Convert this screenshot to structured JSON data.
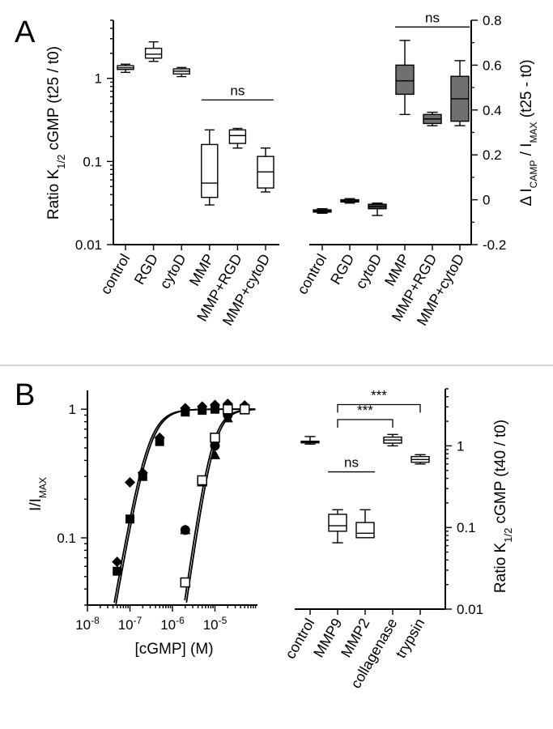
{
  "panel_labels": [
    "A",
    "B"
  ],
  "chart_data": [
    {
      "id": "A-left",
      "type": "box",
      "ylabel": "Ratio K1/2 cGMP (t25 / t0)",
      "yscale": "log",
      "ylim": [
        0.01,
        5
      ],
      "yticks": [
        0.01,
        0.1,
        1
      ],
      "ytick_labels": [
        "0.01",
        "0.1",
        "1"
      ],
      "categories": [
        "control",
        "RGD",
        "cytoD",
        "MMP",
        "MMP+RGD",
        "MMP+cytoD"
      ],
      "boxes": [
        {
          "whislo": 1.18,
          "q1": 1.28,
          "med": 1.34,
          "q3": 1.42,
          "whishi": 1.48,
          "fill": "white"
        },
        {
          "whislo": 1.6,
          "q1": 1.75,
          "med": 1.95,
          "q3": 2.3,
          "whishi": 2.75,
          "fill": "white"
        },
        {
          "whislo": 1.05,
          "q1": 1.13,
          "med": 1.22,
          "q3": 1.3,
          "whishi": 1.35,
          "fill": "white"
        },
        {
          "whislo": 0.03,
          "q1": 0.037,
          "med": 0.055,
          "q3": 0.16,
          "whishi": 0.24,
          "fill": "white"
        },
        {
          "whislo": 0.145,
          "q1": 0.165,
          "med": 0.205,
          "q3": 0.24,
          "whishi": 0.25,
          "fill": "white"
        },
        {
          "whislo": 0.043,
          "q1": 0.048,
          "med": 0.075,
          "q3": 0.115,
          "whishi": 0.145,
          "fill": "white"
        }
      ],
      "annotations": [
        {
          "text": "ns",
          "from": 3,
          "to": 5,
          "y": 0.55
        }
      ]
    },
    {
      "id": "A-right",
      "type": "box",
      "ylabel": "Δ I_cAMP / I_MAX (t25 - t0)",
      "yscale": "linear",
      "ylim": [
        -0.2,
        0.8
      ],
      "yticks": [
        -0.2,
        0,
        0.2,
        0.4,
        0.6,
        0.8
      ],
      "ytick_labels": [
        "-0.2",
        "0",
        "0.2",
        "0.4",
        "0.6",
        "0.8"
      ],
      "categories": [
        "control",
        "RGD",
        "cytoD",
        "MMP",
        "MMP+RGD",
        "MMP+cytoD"
      ],
      "boxes": [
        {
          "whislo": -0.06,
          "q1": -0.055,
          "med": -0.05,
          "q3": -0.045,
          "whishi": -0.04,
          "fill": "#404040"
        },
        {
          "whislo": -0.015,
          "q1": -0.01,
          "med": -0.005,
          "q3": 0.0,
          "whishi": 0.005,
          "fill": "#404040"
        },
        {
          "whislo": -0.07,
          "q1": -0.04,
          "med": -0.03,
          "q3": -0.02,
          "whishi": -0.015,
          "fill": "#404040"
        },
        {
          "whislo": 0.38,
          "q1": 0.47,
          "med": 0.53,
          "q3": 0.6,
          "whishi": 0.71,
          "fill": "#707070"
        },
        {
          "whislo": 0.33,
          "q1": 0.34,
          "med": 0.36,
          "q3": 0.38,
          "whishi": 0.39,
          "fill": "#707070"
        },
        {
          "whislo": 0.33,
          "q1": 0.35,
          "med": 0.45,
          "q3": 0.55,
          "whishi": 0.62,
          "fill": "#707070"
        }
      ],
      "annotations": [
        {
          "text": "ns",
          "from": 3,
          "to": 5,
          "y": 0.77
        }
      ]
    },
    {
      "id": "B-left",
      "type": "scatter",
      "xlabel": "[cGMP] (M)",
      "ylabel": "I/I_MAX",
      "xscale": "log",
      "yscale": "log",
      "xlim": [
        1e-08,
        0.0001
      ],
      "ylim": [
        0.03,
        1.4
      ],
      "xticks": [
        -8,
        -7,
        -6,
        -5
      ],
      "yticks": [
        0.1,
        1
      ],
      "ytick_labels": [
        "0.1",
        "1"
      ],
      "series": [
        {
          "marker": "filled-diamond",
          "x": [
            5e-08,
            1e-07,
            2e-07,
            5e-07,
            2e-06,
            5e-06,
            1e-05,
            2e-05,
            5e-05
          ],
          "y": [
            0.065,
            0.27,
            0.32,
            0.6,
            1.02,
            1.05,
            1.08,
            1.1,
            1.07
          ]
        },
        {
          "marker": "filled-square",
          "x": [
            5e-08,
            1e-07,
            2e-07,
            5e-07,
            2e-06,
            5e-06,
            1e-05,
            2e-05,
            5e-05
          ],
          "y": [
            0.055,
            0.14,
            0.3,
            0.56,
            0.95,
            0.98,
            1.0,
            1.02,
            1.0
          ]
        },
        {
          "marker": "filled-circle",
          "x": [
            2e-06,
            5e-06,
            1e-05,
            2e-05,
            5e-05
          ],
          "y": [
            0.115,
            0.28,
            0.52,
            0.9,
            1.0
          ]
        },
        {
          "marker": "filled-triangle",
          "x": [
            2e-06,
            5e-06,
            1e-05,
            2e-05,
            5e-05
          ],
          "y": [
            0.115,
            0.27,
            0.44,
            0.85,
            0.98
          ]
        },
        {
          "marker": "open-square",
          "x": [
            2e-06,
            5e-06,
            1e-05,
            2e-05,
            5e-05
          ],
          "y": [
            0.045,
            0.28,
            0.6,
            1.0,
            1.0
          ]
        }
      ],
      "fits": [
        {
          "k": 2.6e-07,
          "n": 1.9
        },
        {
          "k": 2.9e-07,
          "n": 1.9
        },
        {
          "k": 8.5e-06,
          "n": 2.3
        },
        {
          "k": 9.5e-06,
          "n": 2.3
        }
      ]
    },
    {
      "id": "B-right",
      "type": "box",
      "ylabel": "Ratio K1/2 cGMP (t40 / t0)",
      "yscale": "log",
      "ylim": [
        0.01,
        5
      ],
      "yticks": [
        0.01,
        0.1,
        1
      ],
      "ytick_labels": [
        "0.01",
        "0.1",
        "1"
      ],
      "categories": [
        "control",
        "MMP9",
        "MMP2",
        "collagenase",
        "trypsin"
      ],
      "boxes": [
        {
          "whislo": 1.05,
          "q1": 1.1,
          "med": 1.12,
          "q3": 1.14,
          "whishi": 1.3,
          "fill": "white"
        },
        {
          "whislo": 0.065,
          "q1": 0.09,
          "med": 0.105,
          "q3": 0.145,
          "whishi": 0.165,
          "fill": "white"
        },
        {
          "whislo": 0.075,
          "q1": 0.075,
          "med": 0.085,
          "q3": 0.115,
          "whishi": 0.165,
          "fill": "white"
        },
        {
          "whislo": 1.0,
          "q1": 1.08,
          "med": 1.18,
          "q3": 1.28,
          "whishi": 1.38,
          "fill": "white"
        },
        {
          "whislo": 0.6,
          "q1": 0.63,
          "med": 0.68,
          "q3": 0.74,
          "whishi": 0.78,
          "fill": "white"
        }
      ],
      "annotations": [
        {
          "text": "ns",
          "from": 1,
          "to": 2,
          "y": 0.48
        },
        {
          "text": "***",
          "from": 1,
          "to": 3,
          "y": 2.1
        },
        {
          "text": "***",
          "from": 1,
          "to": 4,
          "y": 3.2
        }
      ]
    }
  ]
}
